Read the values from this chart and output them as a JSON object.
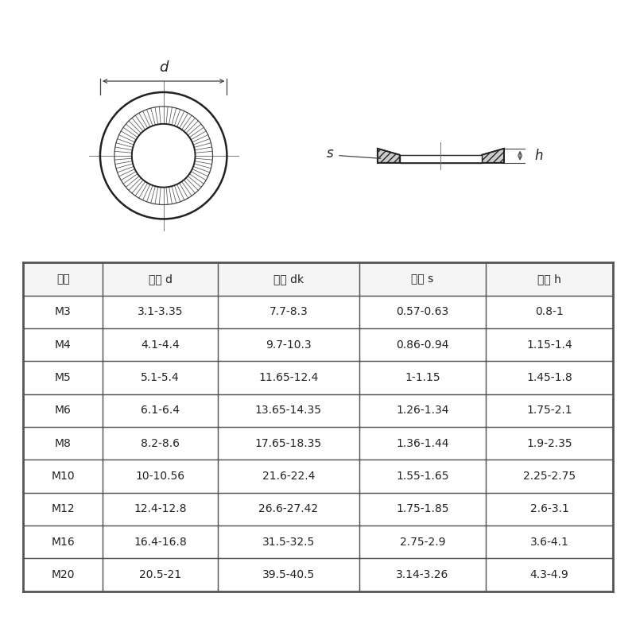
{
  "bg_color": "#ffffff",
  "table_headers": [
    "规格",
    "内径 d",
    "外径 dk",
    "边厚 s",
    "整厚 h"
  ],
  "table_rows": [
    [
      "M3",
      "3.1-3.35",
      "7.7-8.3",
      "0.57-0.63",
      "0.8-1"
    ],
    [
      "M4",
      "4.1-4.4",
      "9.7-10.3",
      "0.86-0.94",
      "1.15-1.4"
    ],
    [
      "M5",
      "5.1-5.4",
      "11.65-12.4",
      "1-1.15",
      "1.45-1.8"
    ],
    [
      "M6",
      "6.1-6.4",
      "13.65-14.35",
      "1.26-1.34",
      "1.75-2.1"
    ],
    [
      "M8",
      "8.2-8.6",
      "17.65-18.35",
      "1.36-1.44",
      "1.9-2.35"
    ],
    [
      "M10",
      "10-10.56",
      "21.6-22.4",
      "1.55-1.65",
      "2.25-2.75"
    ],
    [
      "M12",
      "12.4-12.8",
      "26.6-27.42",
      "1.75-1.85",
      "2.6-3.1"
    ],
    [
      "M16",
      "16.4-16.8",
      "31.5-32.5",
      "2.75-2.9",
      "3.6-4.1"
    ],
    [
      "M20",
      "20.5-21",
      "39.5-40.5",
      "3.14-3.26",
      "4.3-4.9"
    ]
  ],
  "label_d": "d",
  "label_s": "s",
  "label_h": "h",
  "text_color": "#222222",
  "line_color": "#444444",
  "border_color": "#555555",
  "hatch_color": "#333333",
  "crosshair_color": "#777777"
}
